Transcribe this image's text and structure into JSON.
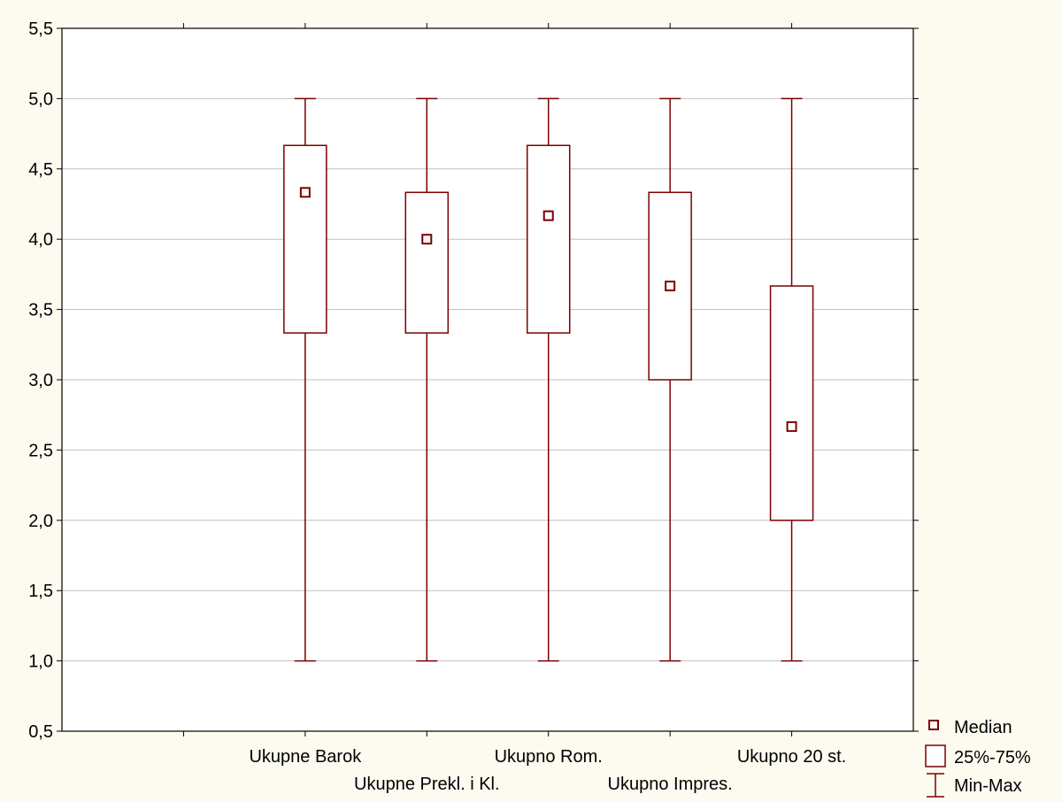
{
  "chart_data": {
    "type": "boxplot",
    "title": "",
    "xlabel": "",
    "ylabel": "",
    "ylim": [
      0.5,
      5.5
    ],
    "y_ticks": [
      "0,5",
      "1,0",
      "1,5",
      "2,0",
      "2,5",
      "3,0",
      "3,5",
      "4,0",
      "4,5",
      "5,0",
      "5,5"
    ],
    "y_tick_values": [
      0.5,
      1.0,
      1.5,
      2.0,
      2.5,
      3.0,
      3.5,
      4.0,
      4.5,
      5.0,
      5.5
    ],
    "grid": true,
    "legend_position": "bottom-right-outside",
    "categories": [
      "Ukupne Barok",
      "Ukupne Prekl. i Kl.",
      "Ukupno Rom.",
      "Ukupno Impres.",
      "Ukupno 20 st."
    ],
    "category_slots": [
      2,
      3,
      4,
      5,
      6
    ],
    "slot_count": 7,
    "boxes": [
      {
        "min": 1.0,
        "q1": 3.333,
        "median": 4.333,
        "q3": 4.667,
        "max": 5.0
      },
      {
        "min": 1.0,
        "q1": 3.333,
        "median": 4.0,
        "q3": 4.333,
        "max": 5.0
      },
      {
        "min": 1.0,
        "q1": 3.333,
        "median": 4.167,
        "q3": 4.667,
        "max": 5.0
      },
      {
        "min": 1.0,
        "q1": 3.0,
        "median": 3.667,
        "q3": 4.333,
        "max": 5.0
      },
      {
        "min": 1.0,
        "q1": 2.0,
        "median": 2.667,
        "q3": 3.667,
        "max": 5.0
      }
    ],
    "legend": [
      "Median",
      "25%-75%",
      "Min-Max"
    ],
    "colors": {
      "series": "#7b0000",
      "grid": "#c0c0c0",
      "plot_bg": "#ffffff",
      "page_bg": "#fdfbf0"
    }
  }
}
